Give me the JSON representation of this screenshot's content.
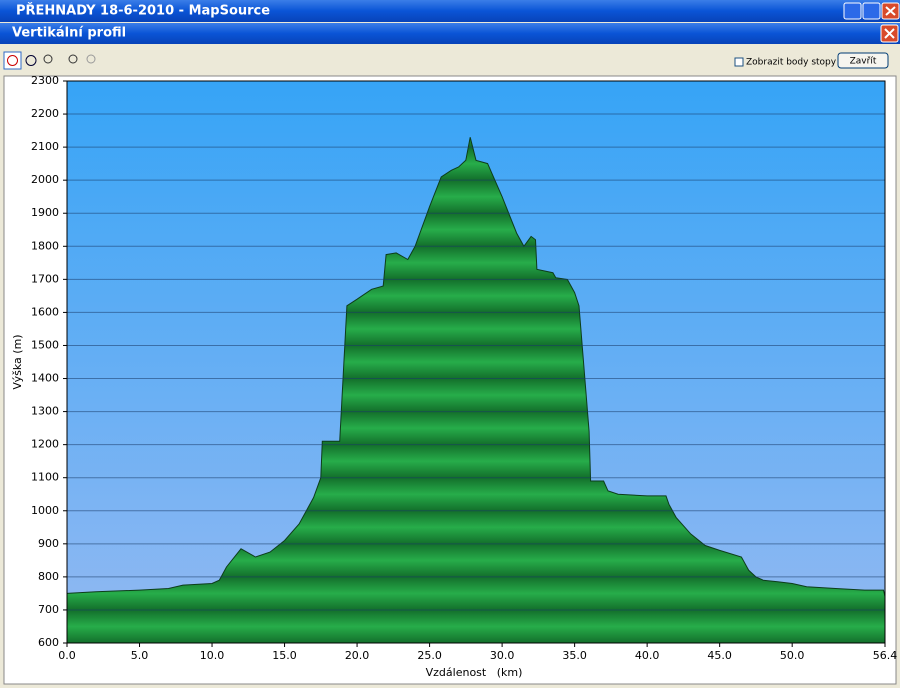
{
  "window": {
    "title": "PŘEHNADY 18-6-2010 - MapSource",
    "dialog_title": "Vertikální profil",
    "checkbox_label": "Zobrazit body stopy",
    "close_button": "Zavřít"
  },
  "chart_data": {
    "type": "area",
    "x_label": "Vzdálenost   (km)",
    "y_label": "Výška (m)",
    "x": [
      0,
      2,
      5,
      7,
      8,
      10,
      10.5,
      11,
      12,
      13,
      14,
      15,
      16,
      17,
      17.5,
      17.6,
      18.8,
      19.3,
      20,
      21,
      21.8,
      22,
      22.7,
      23.5,
      24,
      25,
      25.8,
      26.5,
      27,
      27.5,
      27.8,
      28.2,
      29,
      30,
      31,
      31.5,
      32,
      32.3,
      32.4,
      33.5,
      33.7,
      34.5,
      35,
      35.3,
      36,
      36.1,
      37,
      37.3,
      38,
      40,
      41.3,
      41.5,
      42,
      43,
      44,
      45,
      46.5,
      47,
      47.5,
      48,
      49,
      50,
      51,
      53,
      55,
      56.3,
      56.4
    ],
    "values": [
      750,
      755,
      760,
      765,
      775,
      780,
      790,
      830,
      885,
      860,
      875,
      910,
      960,
      1040,
      1100,
      1210,
      1210,
      1620,
      1640,
      1670,
      1680,
      1775,
      1780,
      1760,
      1800,
      1920,
      2010,
      2030,
      2040,
      2060,
      2130,
      2060,
      2050,
      1950,
      1840,
      1800,
      1830,
      1820,
      1730,
      1720,
      1705,
      1700,
      1660,
      1620,
      1240,
      1090,
      1090,
      1060,
      1050,
      1045,
      1045,
      1020,
      980,
      930,
      895,
      880,
      860,
      820,
      800,
      790,
      785,
      780,
      770,
      765,
      760,
      760,
      740
    ],
    "color": "#1f9a3e",
    "xlim": [
      0,
      56.4
    ],
    "ylim": [
      600,
      2300
    ],
    "xticks": [
      {
        "value": 0,
        "label": "0.0"
      },
      {
        "value": 5,
        "label": "5.0"
      },
      {
        "value": 10,
        "label": "10.0"
      },
      {
        "value": 15,
        "label": "15.0"
      },
      {
        "value": 20,
        "label": "20.0"
      },
      {
        "value": 25,
        "label": "25.0"
      },
      {
        "value": 30,
        "label": "30.0"
      },
      {
        "value": 35,
        "label": "35.0"
      },
      {
        "value": 40,
        "label": "40.0"
      },
      {
        "value": 45,
        "label": "45.0"
      },
      {
        "value": 50,
        "label": "50.0"
      },
      56.4
    ],
    "yticks": [
      600,
      700,
      800,
      900,
      1000,
      1100,
      1200,
      1300,
      1400,
      1500,
      1600,
      1700,
      1800,
      1900,
      2000,
      2100,
      2200,
      2300
    ],
    "grid": true
  }
}
